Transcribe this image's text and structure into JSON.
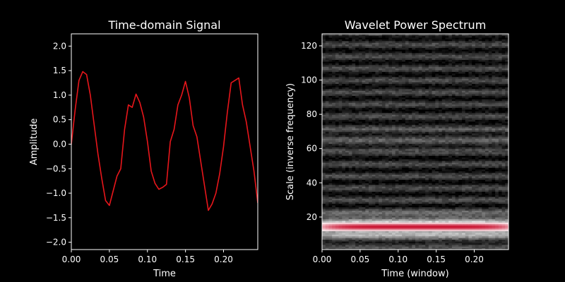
{
  "colors": {
    "background": "#000000",
    "signal_line": "#e8161b",
    "axes": "#ffffff",
    "spectrum_high": "#c8102e",
    "spectrum_mid": "#ffffff",
    "spectrum_low": "#000000"
  },
  "chart_data": [
    {
      "type": "line",
      "title": "Time-domain Signal",
      "xlabel": "Time",
      "ylabel": "Amplitude",
      "xlim": [
        0,
        0.245
      ],
      "ylim": [
        -2.15,
        2.25
      ],
      "xticks": [
        "0.00",
        "0.05",
        "0.10",
        "0.15",
        "0.20"
      ],
      "xtick_values": [
        0,
        0.05,
        0.1,
        0.15,
        0.2
      ],
      "yticks": [
        "−2.0",
        "−1.5",
        "−1.0",
        "−0.5",
        "0.0",
        "0.5",
        "1.0",
        "1.5",
        "2.0"
      ],
      "ytick_values": [
        -2.0,
        -1.5,
        -1.0,
        -0.5,
        0.0,
        0.5,
        1.0,
        1.5,
        2.0
      ],
      "series": [
        {
          "x": [
            0.0,
            0.005,
            0.01,
            0.015,
            0.02,
            0.025,
            0.03,
            0.035,
            0.04,
            0.045,
            0.05,
            0.055,
            0.06,
            0.065,
            0.07,
            0.075,
            0.08,
            0.085,
            0.09,
            0.095,
            0.1,
            0.105,
            0.11,
            0.115,
            0.12,
            0.125,
            0.13,
            0.135,
            0.14,
            0.145,
            0.15,
            0.155,
            0.16,
            0.165,
            0.17,
            0.175,
            0.18,
            0.185,
            0.19,
            0.195,
            0.2,
            0.205,
            0.21,
            0.215,
            0.22,
            0.225,
            0.23,
            0.235,
            0.24,
            0.245
          ],
          "y": [
            0.0,
            0.7,
            1.3,
            1.48,
            1.42,
            1.0,
            0.4,
            -0.2,
            -0.7,
            -1.15,
            -1.25,
            -0.95,
            -0.65,
            -0.5,
            0.3,
            0.8,
            0.75,
            1.02,
            0.85,
            0.55,
            0.05,
            -0.55,
            -0.8,
            -0.92,
            -0.88,
            -0.82,
            0.05,
            0.3,
            0.8,
            1.0,
            1.28,
            0.95,
            0.38,
            0.15,
            -0.35,
            -0.85,
            -1.35,
            -1.22,
            -1.0,
            -0.6,
            -0.05,
            0.65,
            1.25,
            1.3,
            1.35,
            0.8,
            0.45,
            -0.05,
            -0.55,
            -1.2
          ]
        }
      ]
    },
    {
      "type": "heatmap",
      "title": "Wavelet Power Spectrum",
      "xlabel": "Time (window)",
      "ylabel": "Scale (inverse frequency)",
      "xlim": [
        0,
        0.245
      ],
      "ylim": [
        1,
        127
      ],
      "xticks": [
        "0.00",
        "0.05",
        "0.10",
        "0.15",
        "0.20"
      ],
      "xtick_values": [
        0,
        0.05,
        0.1,
        0.15,
        0.2
      ],
      "yticks": [
        "20",
        "40",
        "60",
        "80",
        "100",
        "120"
      ],
      "ytick_values": [
        20,
        40,
        60,
        80,
        100,
        120
      ],
      "colormap": "black-white-red",
      "dominant_scale": 14
    }
  ]
}
